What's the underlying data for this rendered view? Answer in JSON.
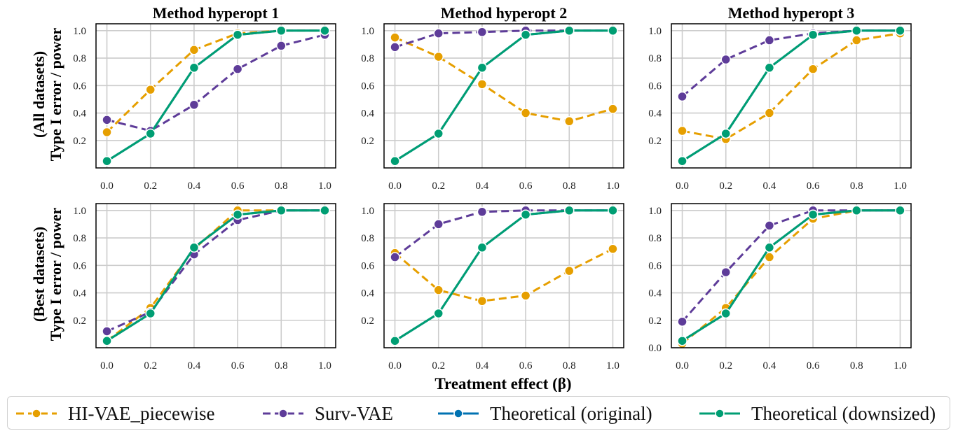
{
  "figure": {
    "xlabel": "Treatment effect (β)",
    "row_labels": [
      [
        "(All datasets)",
        "Type I error / power"
      ],
      [
        "(Best datasets)",
        "Type I error / power"
      ]
    ]
  },
  "legend": [
    {
      "label": "HI-VAE_piecewise",
      "color": "#E69F00",
      "dash": true
    },
    {
      "label": "Surv-VAE",
      "color": "#5E3C99",
      "dash": true
    },
    {
      "label": "Theoretical (original)",
      "color": "#0072B2",
      "dash": false
    },
    {
      "label": "Theoretical (downsized)",
      "color": "#009E73",
      "dash": false
    }
  ],
  "chart_data": [
    {
      "type": "line",
      "title": "Method hyperopt 1",
      "row": 0,
      "col": 0,
      "x": [
        0.0,
        0.2,
        0.4,
        0.6,
        0.8,
        1.0
      ],
      "xticks": [
        "0.0",
        "0.2",
        "0.4",
        "0.6",
        "0.8",
        "1.0"
      ],
      "yticks": [
        "0.2",
        "0.4",
        "0.6",
        "0.8",
        "1.0"
      ],
      "ylim": [
        0.0,
        1.05
      ],
      "xlim": [
        -0.05,
        1.05
      ],
      "series": [
        {
          "name": "HI-VAE_piecewise",
          "values": [
            0.26,
            0.57,
            0.86,
            0.98,
            1.0,
            1.0
          ]
        },
        {
          "name": "Surv-VAE",
          "values": [
            0.35,
            0.27,
            0.46,
            0.72,
            0.89,
            0.97
          ]
        },
        {
          "name": "Theoretical (original)",
          "values": [
            0.05,
            0.25,
            0.73,
            0.97,
            1.0,
            1.0
          ]
        },
        {
          "name": "Theoretical (downsized)",
          "values": [
            0.05,
            0.25,
            0.73,
            0.97,
            1.0,
            1.0
          ]
        }
      ]
    },
    {
      "type": "line",
      "title": "Method hyperopt 2",
      "row": 0,
      "col": 1,
      "x": [
        0.0,
        0.2,
        0.4,
        0.6,
        0.8,
        1.0
      ],
      "xticks": [
        "0.0",
        "0.2",
        "0.4",
        "0.6",
        "0.8",
        "1.0"
      ],
      "yticks": [
        "0.2",
        "0.4",
        "0.6",
        "0.8",
        "1.0"
      ],
      "ylim": [
        0.0,
        1.05
      ],
      "xlim": [
        -0.05,
        1.05
      ],
      "series": [
        {
          "name": "HI-VAE_piecewise",
          "values": [
            0.95,
            0.81,
            0.61,
            0.4,
            0.34,
            0.43
          ]
        },
        {
          "name": "Surv-VAE",
          "values": [
            0.88,
            0.98,
            0.99,
            1.0,
            1.0,
            1.0
          ]
        },
        {
          "name": "Theoretical (original)",
          "values": [
            0.05,
            0.25,
            0.73,
            0.97,
            1.0,
            1.0
          ]
        },
        {
          "name": "Theoretical (downsized)",
          "values": [
            0.05,
            0.25,
            0.73,
            0.97,
            1.0,
            1.0
          ]
        }
      ]
    },
    {
      "type": "line",
      "title": "Method hyperopt 3",
      "row": 0,
      "col": 2,
      "x": [
        0.0,
        0.2,
        0.4,
        0.6,
        0.8,
        1.0
      ],
      "xticks": [
        "0.0",
        "0.2",
        "0.4",
        "0.6",
        "0.8",
        "1.0"
      ],
      "yticks": [
        "0.2",
        "0.4",
        "0.6",
        "0.8",
        "1.0"
      ],
      "ylim": [
        0.0,
        1.05
      ],
      "xlim": [
        -0.05,
        1.05
      ],
      "series": [
        {
          "name": "HI-VAE_piecewise",
          "values": [
            0.27,
            0.21,
            0.4,
            0.72,
            0.93,
            0.98
          ]
        },
        {
          "name": "Surv-VAE",
          "values": [
            0.52,
            0.79,
            0.93,
            0.98,
            1.0,
            1.0
          ]
        },
        {
          "name": "Theoretical (original)",
          "values": [
            0.05,
            0.25,
            0.73,
            0.97,
            1.0,
            1.0
          ]
        },
        {
          "name": "Theoretical (downsized)",
          "values": [
            0.05,
            0.25,
            0.73,
            0.97,
            1.0,
            1.0
          ]
        }
      ]
    },
    {
      "type": "line",
      "title": "",
      "row": 1,
      "col": 0,
      "x": [
        0.0,
        0.2,
        0.4,
        0.6,
        0.8,
        1.0
      ],
      "xticks": [
        "0.0",
        "0.2",
        "0.4",
        "0.6",
        "0.8",
        "1.0"
      ],
      "yticks": [
        "0.2",
        "0.4",
        "0.6",
        "0.8",
        "1.0"
      ],
      "ylim": [
        0.0,
        1.05
      ],
      "xlim": [
        -0.05,
        1.05
      ],
      "series": [
        {
          "name": "HI-VAE_piecewise",
          "values": [
            0.05,
            0.29,
            0.72,
            1.0,
            1.0,
            1.0
          ]
        },
        {
          "name": "Surv-VAE",
          "values": [
            0.12,
            0.26,
            0.68,
            0.93,
            1.0,
            1.0
          ]
        },
        {
          "name": "Theoretical (original)",
          "values": [
            0.05,
            0.25,
            0.73,
            0.97,
            1.0,
            1.0
          ]
        },
        {
          "name": "Theoretical (downsized)",
          "values": [
            0.05,
            0.25,
            0.73,
            0.97,
            1.0,
            1.0
          ]
        }
      ]
    },
    {
      "type": "line",
      "title": "",
      "row": 1,
      "col": 1,
      "x": [
        0.0,
        0.2,
        0.4,
        0.6,
        0.8,
        1.0
      ],
      "xticks": [
        "0.0",
        "0.2",
        "0.4",
        "0.6",
        "0.8",
        "1.0"
      ],
      "yticks": [
        "0.2",
        "0.4",
        "0.6",
        "0.8",
        "1.0"
      ],
      "ylim": [
        0.0,
        1.05
      ],
      "xlim": [
        -0.05,
        1.05
      ],
      "series": [
        {
          "name": "HI-VAE_piecewise",
          "values": [
            0.69,
            0.42,
            0.34,
            0.38,
            0.56,
            0.72
          ]
        },
        {
          "name": "Surv-VAE",
          "values": [
            0.66,
            0.9,
            0.99,
            1.0,
            1.0,
            1.0
          ]
        },
        {
          "name": "Theoretical (original)",
          "values": [
            0.05,
            0.25,
            0.73,
            0.97,
            1.0,
            1.0
          ]
        },
        {
          "name": "Theoretical (downsized)",
          "values": [
            0.05,
            0.25,
            0.73,
            0.97,
            1.0,
            1.0
          ]
        }
      ]
    },
    {
      "type": "line",
      "title": "",
      "row": 1,
      "col": 2,
      "x": [
        0.0,
        0.2,
        0.4,
        0.6,
        0.8,
        1.0
      ],
      "xticks": [
        "0.0",
        "0.2",
        "0.4",
        "0.6",
        "0.8",
        "1.0"
      ],
      "yticks": [
        "0.0",
        "0.2",
        "0.4",
        "0.6",
        "0.8",
        "1.0"
      ],
      "ylim": [
        0.0,
        1.05
      ],
      "xlim": [
        -0.05,
        1.05
      ],
      "series": [
        {
          "name": "HI-VAE_piecewise",
          "values": [
            0.03,
            0.29,
            0.66,
            0.94,
            1.0,
            1.0
          ]
        },
        {
          "name": "Surv-VAE",
          "values": [
            0.19,
            0.55,
            0.89,
            1.0,
            1.0,
            1.0
          ]
        },
        {
          "name": "Theoretical (original)",
          "values": [
            0.05,
            0.25,
            0.73,
            0.97,
            1.0,
            1.0
          ]
        },
        {
          "name": "Theoretical (downsized)",
          "values": [
            0.05,
            0.25,
            0.73,
            0.97,
            1.0,
            1.0
          ]
        }
      ]
    }
  ]
}
